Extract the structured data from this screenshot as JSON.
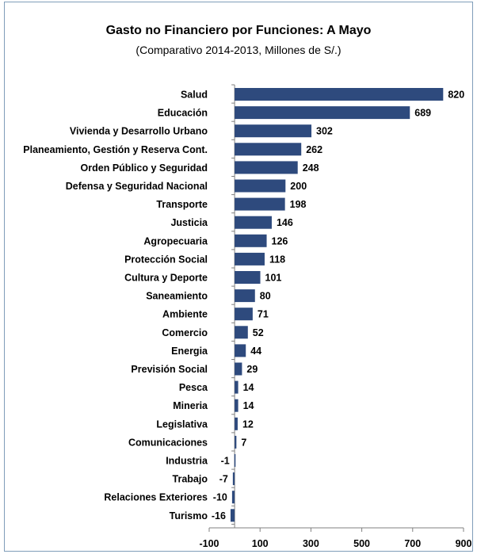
{
  "chart_data": {
    "type": "bar",
    "orientation": "horizontal",
    "title": "Gasto no Financiero por Funciones: A  Mayo",
    "subtitle": "(Comparativo 2014-2013, Millones de S/.)",
    "categories": [
      "Salud",
      "Educación",
      "Vivienda y Desarrollo Urbano",
      "Planeamiento, Gestión y Reserva Cont.",
      "Orden Público y Seguridad",
      "Defensa y Seguridad Nacional",
      "Transporte",
      "Justicia",
      "Agropecuaria",
      "Protección Social",
      "Cultura y Deporte",
      "Saneamiento",
      "Ambiente",
      "Comercio",
      "Energia",
      "Previsión Social",
      "Pesca",
      "Mineria",
      "Legislativa",
      "Comunicaciones",
      "Industria",
      "Trabajo",
      "Relaciones Exteriores",
      "Turismo"
    ],
    "values": [
      820,
      689,
      302,
      262,
      248,
      200,
      198,
      146,
      126,
      118,
      101,
      80,
      71,
      52,
      44,
      29,
      14,
      14,
      12,
      7,
      -1,
      -7,
      -10,
      -16
    ],
    "xlim": [
      -100,
      900
    ],
    "xticks": [
      -100,
      100,
      300,
      500,
      700,
      900
    ],
    "xlabel": "",
    "ylabel": "",
    "grid": false,
    "legend": "none",
    "bar_color": "#2e4a7d"
  }
}
